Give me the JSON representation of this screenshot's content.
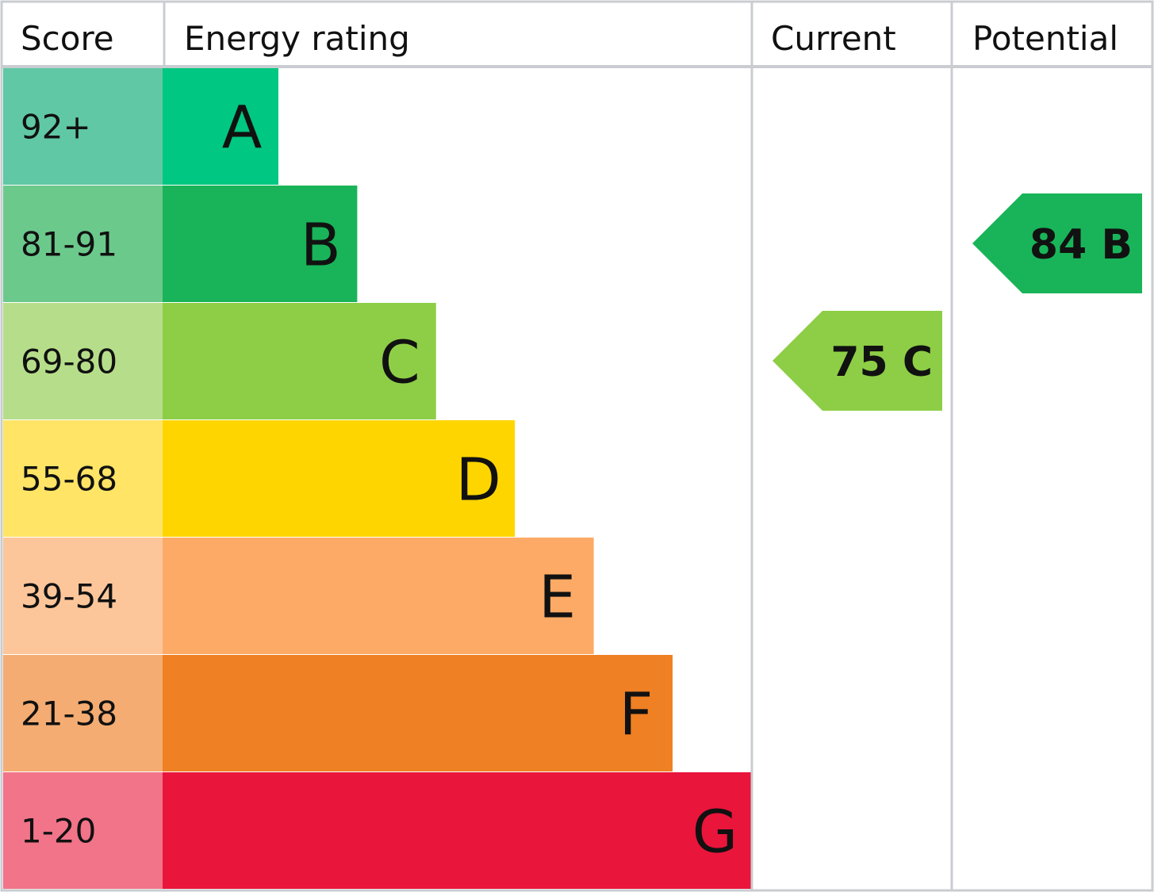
{
  "headers": {
    "score": "Score",
    "energy_rating": "Energy rating",
    "current": "Current",
    "potential": "Potential"
  },
  "chart_data": {
    "type": "bar",
    "categories": [
      "A",
      "B",
      "C",
      "D",
      "E",
      "F",
      "G"
    ],
    "bands": [
      {
        "letter": "A",
        "score": "92+",
        "color": "#00c781",
        "score_bg": "#60c8a4"
      },
      {
        "letter": "B",
        "score": "81-91",
        "color": "#19b459",
        "score_bg": "#6cc98c"
      },
      {
        "letter": "C",
        "score": "69-80",
        "color": "#8dce46",
        "score_bg": "#b6de8a"
      },
      {
        "letter": "D",
        "score": "55-68",
        "color": "#ffd500",
        "score_bg": "#ffe465"
      },
      {
        "letter": "E",
        "score": "39-54",
        "color": "#fcaa65",
        "score_bg": "#fdc69a"
      },
      {
        "letter": "F",
        "score": "21-38",
        "color": "#ef8023",
        "score_bg": "#f4ac72"
      },
      {
        "letter": "G",
        "score": "1-20",
        "color": "#e9153b",
        "score_bg": "#f17489"
      }
    ],
    "current": {
      "value": 75,
      "band": "C",
      "label": "75 C",
      "color": "#8dce46"
    },
    "potential": {
      "value": 84,
      "band": "B",
      "label": "84 B",
      "color": "#19b459"
    }
  }
}
